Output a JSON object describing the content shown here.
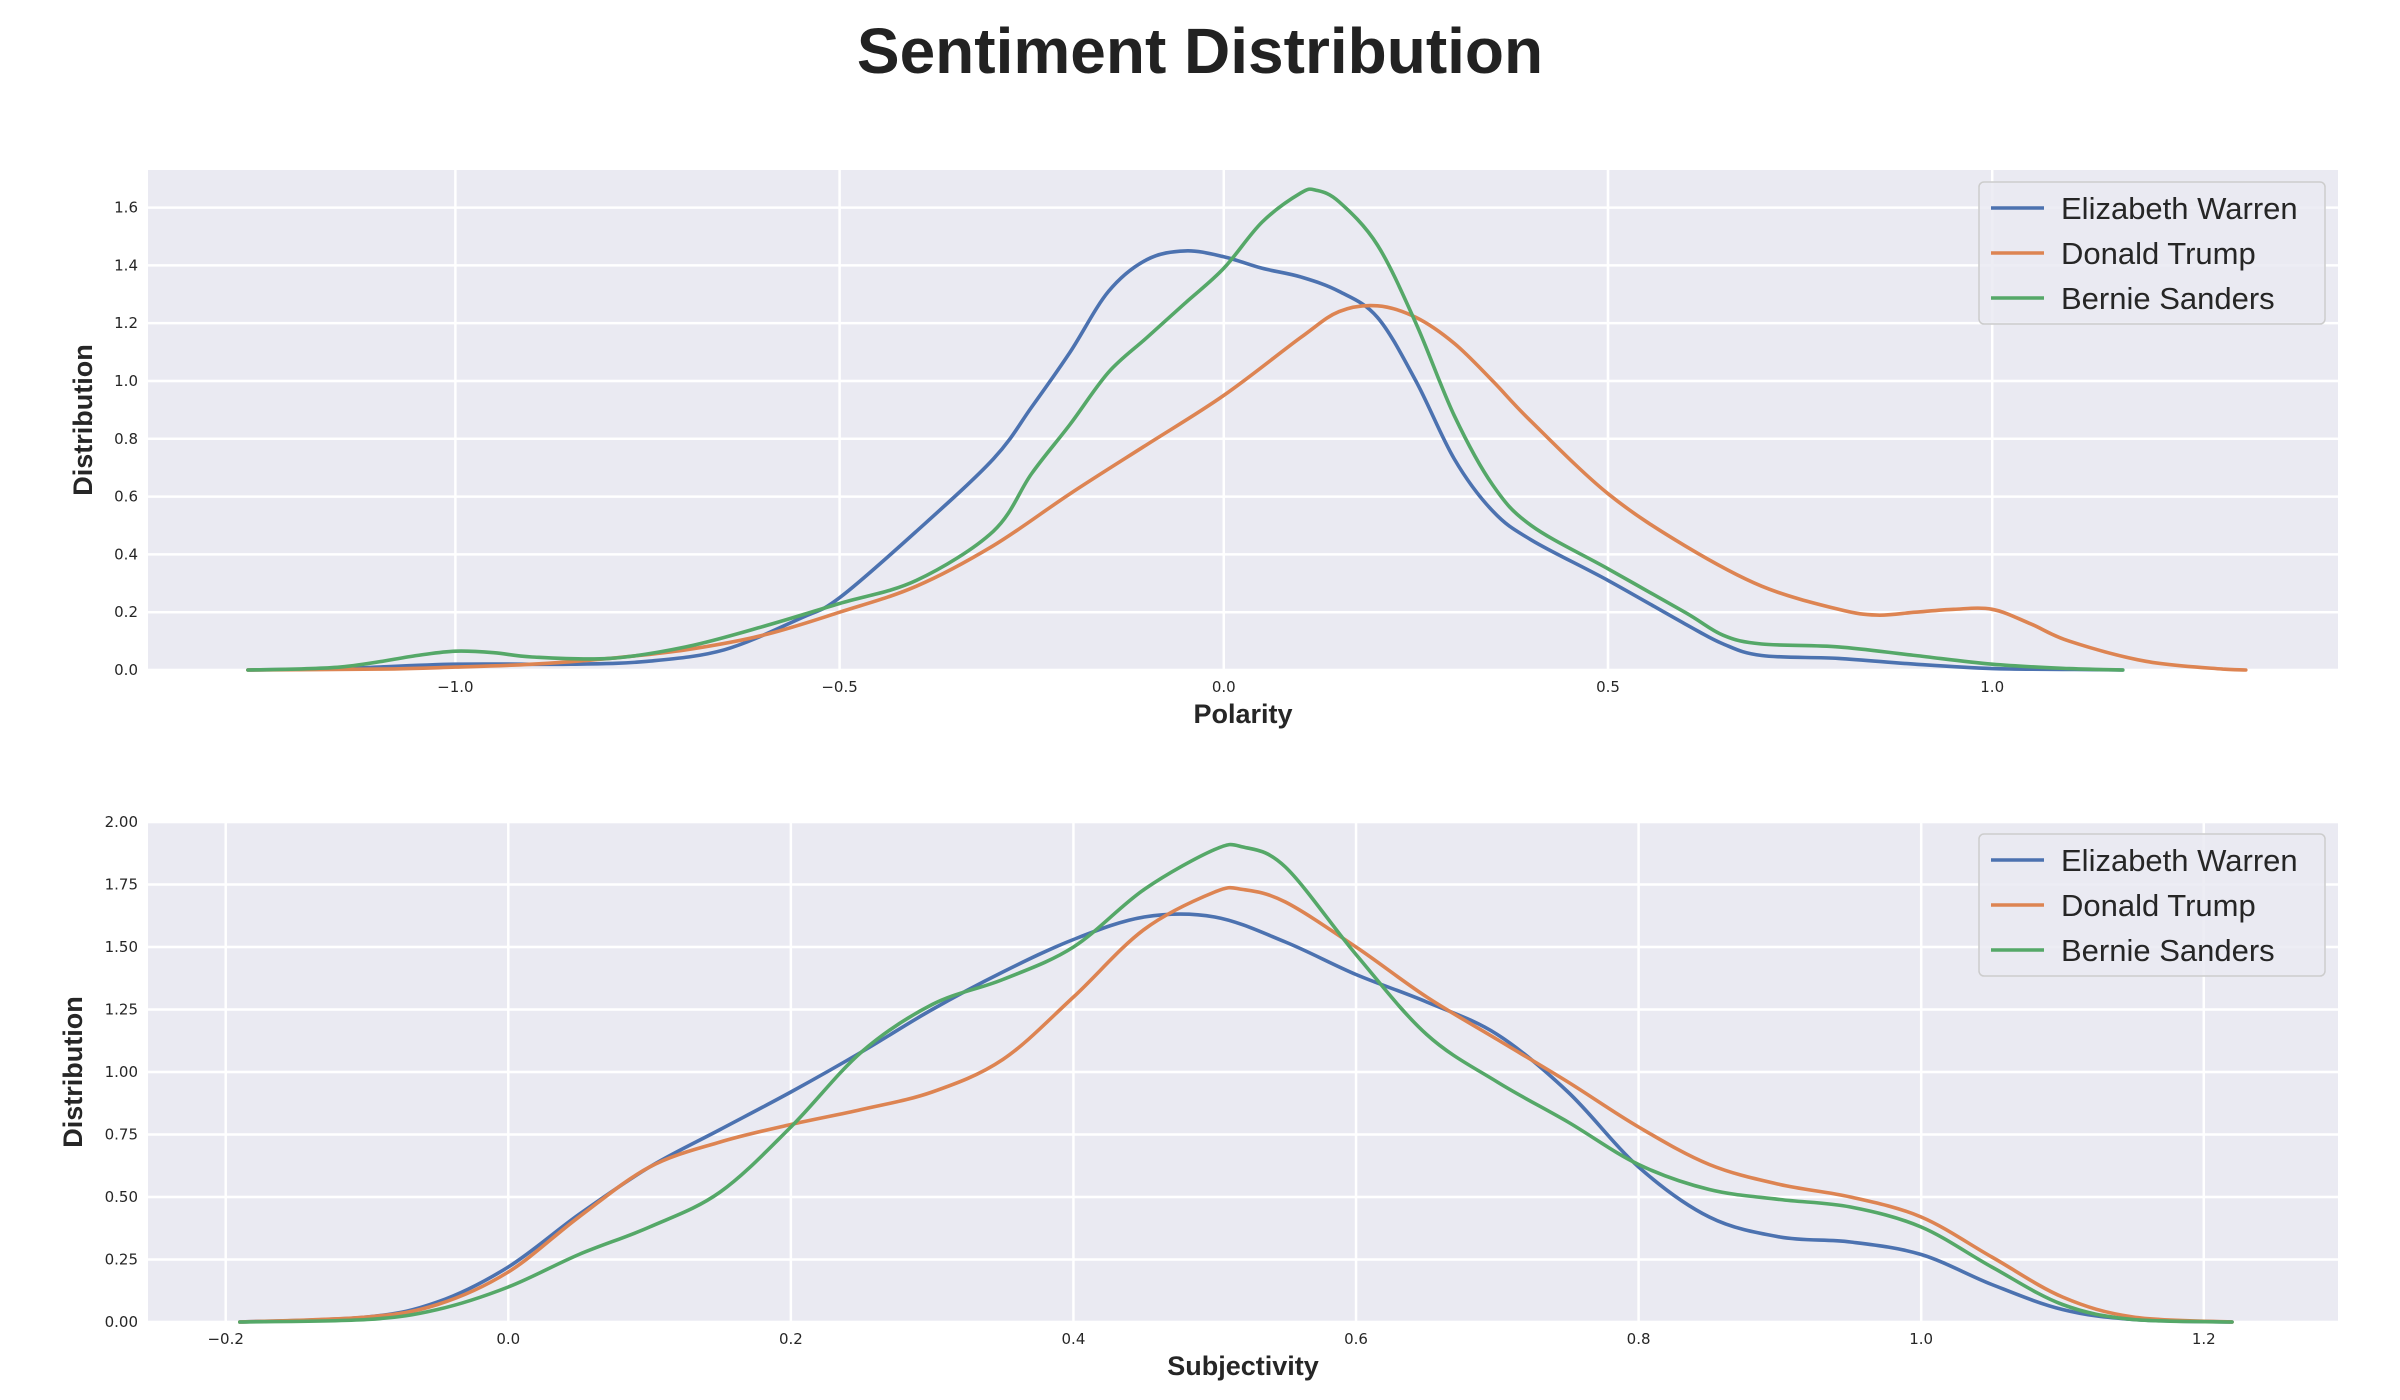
{
  "figure_title": "Sentiment Distribution",
  "chart_data": [
    {
      "type": "line",
      "title": "",
      "xlabel": "Polarity",
      "ylabel": "Distribution",
      "xlim": [
        -1.4,
        1.45
      ],
      "ylim": [
        0,
        1.73
      ],
      "xticks": [
        -1.0,
        -0.5,
        0.0,
        0.5,
        1.0
      ],
      "xtick_labels": [
        "−1.0",
        "−0.5",
        "0.0",
        "0.5",
        "1.0"
      ],
      "yticks": [
        0.0,
        0.2,
        0.4,
        0.6,
        0.8,
        1.0,
        1.2,
        1.4,
        1.6
      ],
      "ytick_labels": [
        "0.0",
        "0.2",
        "0.4",
        "0.6",
        "0.8",
        "1.0",
        "1.2",
        "1.4",
        "1.6"
      ],
      "grid": true,
      "legend_position": "top-right",
      "series": [
        {
          "name": "Elizabeth Warren",
          "color": "#4c72b0",
          "x": [
            -1.27,
            -1.15,
            -1.0,
            -0.85,
            -0.75,
            -0.65,
            -0.55,
            -0.5,
            -0.4,
            -0.3,
            -0.25,
            -0.2,
            -0.15,
            -0.1,
            -0.05,
            0.0,
            0.05,
            0.1,
            0.15,
            0.2,
            0.25,
            0.3,
            0.35,
            0.4,
            0.5,
            0.6,
            0.65,
            0.7,
            0.8,
            0.9,
            1.0,
            1.1,
            1.17
          ],
          "y": [
            0.0,
            0.005,
            0.02,
            0.02,
            0.03,
            0.07,
            0.18,
            0.25,
            0.48,
            0.73,
            0.91,
            1.1,
            1.31,
            1.42,
            1.45,
            1.43,
            1.39,
            1.36,
            1.31,
            1.22,
            1.0,
            0.73,
            0.55,
            0.45,
            0.31,
            0.16,
            0.09,
            0.05,
            0.04,
            0.02,
            0.005,
            0.002,
            0.0
          ]
        },
        {
          "name": "Donald Trump",
          "color": "#dd8452",
          "x": [
            -1.27,
            -1.1,
            -1.0,
            -0.9,
            -0.8,
            -0.7,
            -0.6,
            -0.5,
            -0.4,
            -0.3,
            -0.2,
            -0.1,
            0.0,
            0.1,
            0.15,
            0.2,
            0.25,
            0.3,
            0.35,
            0.4,
            0.5,
            0.6,
            0.7,
            0.8,
            0.85,
            0.9,
            0.95,
            1.0,
            1.05,
            1.1,
            1.2,
            1.3,
            1.33
          ],
          "y": [
            0.0,
            0.003,
            0.01,
            0.02,
            0.04,
            0.07,
            0.12,
            0.2,
            0.29,
            0.43,
            0.61,
            0.78,
            0.95,
            1.15,
            1.24,
            1.26,
            1.22,
            1.13,
            1.0,
            0.86,
            0.61,
            0.43,
            0.29,
            0.21,
            0.19,
            0.2,
            0.21,
            0.21,
            0.16,
            0.1,
            0.03,
            0.003,
            0.0
          ]
        },
        {
          "name": "Bernie Sanders",
          "color": "#55a868",
          "x": [
            -1.27,
            -1.15,
            -1.05,
            -1.0,
            -0.95,
            -0.9,
            -0.8,
            -0.7,
            -0.6,
            -0.5,
            -0.4,
            -0.3,
            -0.25,
            -0.2,
            -0.15,
            -0.1,
            -0.05,
            0.0,
            0.05,
            0.1,
            0.12,
            0.15,
            0.2,
            0.25,
            0.3,
            0.35,
            0.4,
            0.5,
            0.6,
            0.65,
            0.7,
            0.8,
            0.9,
            1.0,
            1.1,
            1.17
          ],
          "y": [
            0.0,
            0.01,
            0.05,
            0.065,
            0.06,
            0.045,
            0.04,
            0.08,
            0.15,
            0.23,
            0.31,
            0.48,
            0.68,
            0.85,
            1.03,
            1.15,
            1.27,
            1.39,
            1.55,
            1.65,
            1.66,
            1.62,
            1.47,
            1.2,
            0.88,
            0.64,
            0.5,
            0.35,
            0.2,
            0.12,
            0.09,
            0.08,
            0.05,
            0.02,
            0.005,
            0.0
          ]
        }
      ]
    },
    {
      "type": "line",
      "title": "",
      "xlabel": "Subjectivity",
      "ylabel": "Distribution",
      "xlim": [
        -0.255,
        1.295
      ],
      "ylim": [
        0,
        2.0
      ],
      "xticks": [
        -0.2,
        0.0,
        0.2,
        0.4,
        0.6,
        0.8,
        1.0,
        1.2
      ],
      "xtick_labels": [
        "−0.2",
        "0.0",
        "0.2",
        "0.4",
        "0.6",
        "0.8",
        "1.0",
        "1.2"
      ],
      "yticks": [
        0.0,
        0.25,
        0.5,
        0.75,
        1.0,
        1.25,
        1.5,
        1.75,
        2.0
      ],
      "ytick_labels": [
        "0.00",
        "0.25",
        "0.50",
        "0.75",
        "1.00",
        "1.25",
        "1.50",
        "1.75",
        "2.00"
      ],
      "grid": true,
      "legend_position": "top-right",
      "series": [
        {
          "name": "Elizabeth Warren",
          "color": "#4c72b0",
          "x": [
            -0.19,
            -0.1,
            -0.05,
            0.0,
            0.05,
            0.1,
            0.15,
            0.2,
            0.25,
            0.3,
            0.35,
            0.4,
            0.45,
            0.5,
            0.55,
            0.6,
            0.65,
            0.7,
            0.75,
            0.8,
            0.85,
            0.9,
            0.95,
            1.0,
            1.05,
            1.1,
            1.15,
            1.22
          ],
          "y": [
            0.0,
            0.02,
            0.08,
            0.22,
            0.43,
            0.62,
            0.77,
            0.92,
            1.08,
            1.25,
            1.4,
            1.53,
            1.62,
            1.62,
            1.52,
            1.39,
            1.28,
            1.15,
            0.92,
            0.62,
            0.42,
            0.34,
            0.32,
            0.27,
            0.15,
            0.05,
            0.01,
            0.0
          ]
        },
        {
          "name": "Donald Trump",
          "color": "#dd8452",
          "x": [
            -0.19,
            -0.1,
            -0.05,
            0.0,
            0.05,
            0.1,
            0.15,
            0.2,
            0.25,
            0.3,
            0.35,
            0.4,
            0.45,
            0.5,
            0.52,
            0.55,
            0.6,
            0.65,
            0.7,
            0.75,
            0.8,
            0.85,
            0.9,
            0.95,
            1.0,
            1.05,
            1.1,
            1.15,
            1.22
          ],
          "y": [
            0.0,
            0.02,
            0.07,
            0.2,
            0.42,
            0.62,
            0.72,
            0.79,
            0.85,
            0.92,
            1.05,
            1.3,
            1.57,
            1.72,
            1.73,
            1.68,
            1.5,
            1.3,
            1.13,
            0.96,
            0.78,
            0.63,
            0.55,
            0.5,
            0.42,
            0.26,
            0.1,
            0.02,
            0.0
          ]
        },
        {
          "name": "Bernie Sanders",
          "color": "#55a868",
          "x": [
            -0.19,
            -0.1,
            -0.05,
            0.0,
            0.05,
            0.1,
            0.15,
            0.2,
            0.25,
            0.3,
            0.35,
            0.4,
            0.45,
            0.5,
            0.52,
            0.55,
            0.6,
            0.65,
            0.7,
            0.75,
            0.8,
            0.85,
            0.9,
            0.95,
            1.0,
            1.05,
            1.1,
            1.15,
            1.22
          ],
          "y": [
            0.0,
            0.01,
            0.05,
            0.14,
            0.27,
            0.38,
            0.52,
            0.78,
            1.08,
            1.27,
            1.37,
            1.5,
            1.73,
            1.89,
            1.9,
            1.82,
            1.47,
            1.15,
            0.96,
            0.8,
            0.63,
            0.53,
            0.49,
            0.46,
            0.38,
            0.22,
            0.07,
            0.01,
            0.0
          ]
        }
      ]
    }
  ]
}
